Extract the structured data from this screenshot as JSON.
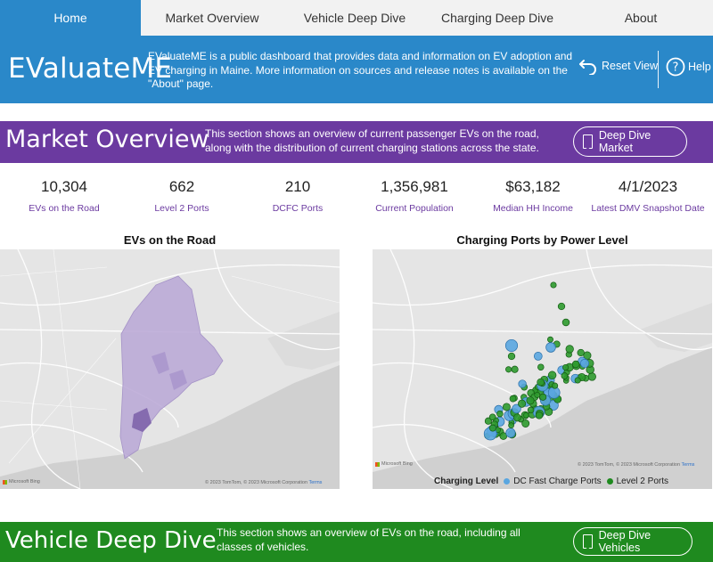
{
  "nav": {
    "tabs": [
      {
        "label": "Home",
        "active": true
      },
      {
        "label": "Market Overview",
        "active": false
      },
      {
        "label": "Vehicle Deep Dive",
        "active": false
      },
      {
        "label": "Charging Deep Dive",
        "active": false
      },
      {
        "label": "About",
        "active": false
      }
    ]
  },
  "header": {
    "logo": "EValuateME",
    "description": "EValuateME is a public dashboard that provides data and information on EV adoption and EV charging in Maine. More information on sources and release notes is available on the \"About\" page.",
    "reset_label": "Reset View",
    "help_label": "Help"
  },
  "market": {
    "title": "Market Overview",
    "description": "This section shows an overview of current passenger EVs on the road, along with the distribution of current charging stations across the state.",
    "button_label": "Deep Dive Market",
    "color": "#6b3aa0"
  },
  "kpis": [
    {
      "value": "10,304",
      "label": "EVs on the Road"
    },
    {
      "value": "662",
      "label": "Level 2 Ports"
    },
    {
      "value": "210",
      "label": "DCFC Ports"
    },
    {
      "value": "1,356,981",
      "label": "Current Population"
    },
    {
      "value": "$63,182",
      "label": "Median HH Income"
    },
    {
      "value": "4/1/2023",
      "label": "Latest DMV Snapshot Date"
    }
  ],
  "ev_map": {
    "title": "EVs on the Road",
    "credit": "© 2023 TomTom, © 2023 Microsoft Corporation",
    "terms": "Terms",
    "bing": "Microsoft Bing"
  },
  "charging_map": {
    "title": "Charging Ports by Power Level",
    "credit": "© 2023 TomTom, © 2023 Microsoft Corporation",
    "terms": "Terms",
    "bing": "Microsoft Bing",
    "legend_title": "Charging Level",
    "legend": [
      {
        "label": "DC Fast Charge Ports",
        "color": "#5aa6e0"
      },
      {
        "label": "Level 2 Ports",
        "color": "#1f8a1f"
      }
    ]
  },
  "vehicle": {
    "title": "Vehicle Deep Dive",
    "description": "This section shows an overview of EVs on the road, including all classes of vehicles.",
    "button_label": "Deep Dive Vehicles",
    "color": "#1f8a1f"
  },
  "colors": {
    "accent_blue": "#2a88c9",
    "purple": "#6b3aa0",
    "green": "#1f8a1f"
  }
}
